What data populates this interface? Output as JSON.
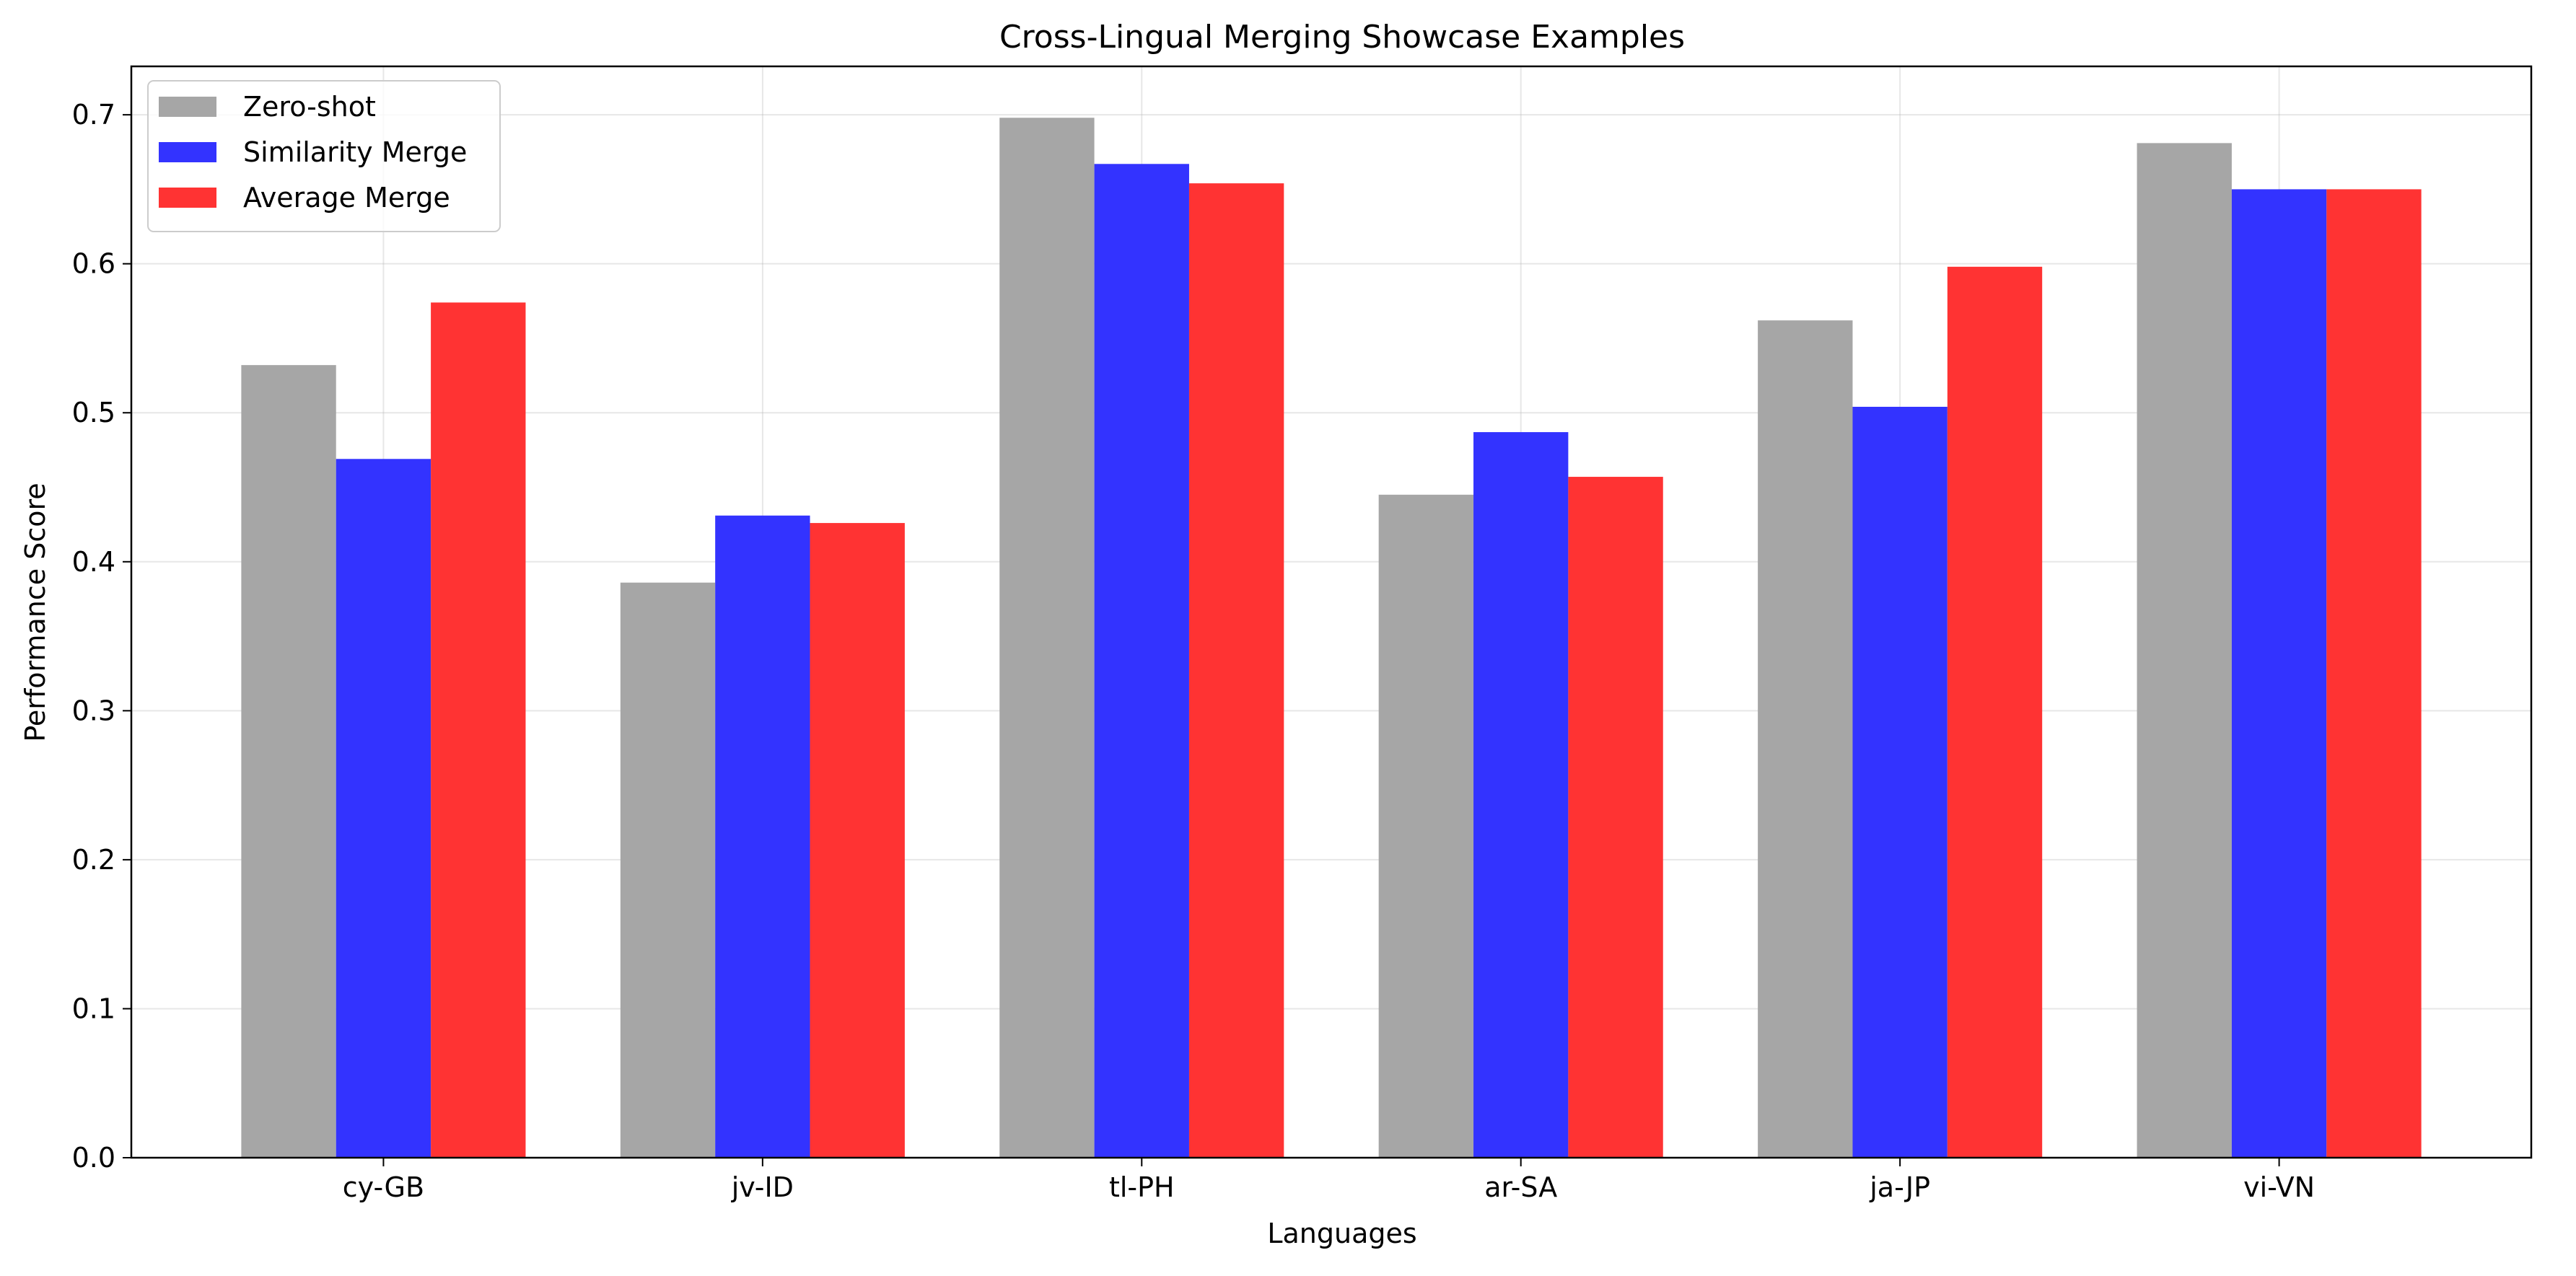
{
  "chart_data": {
    "type": "bar",
    "title": "Cross-Lingual Merging Showcase Examples",
    "xlabel": "Languages",
    "ylabel": "Performance Score",
    "categories": [
      "cy-GB",
      "jv-ID",
      "tl-PH",
      "ar-SA",
      "ja-JP",
      "vi-VN"
    ],
    "series": [
      {
        "name": "Zero-shot",
        "color": "#a6a6a6",
        "values": [
          0.532,
          0.386,
          0.698,
          0.445,
          0.562,
          0.681
        ]
      },
      {
        "name": "Similarity Merge",
        "color": "#3333ff",
        "values": [
          0.469,
          0.431,
          0.667,
          0.487,
          0.504,
          0.65
        ]
      },
      {
        "name": "Average Merge",
        "color": "#ff3333",
        "values": [
          0.574,
          0.426,
          0.654,
          0.457,
          0.598,
          0.65
        ]
      }
    ],
    "ylim": [
      0,
      0.7325
    ],
    "yticks": [
      "0.0",
      "0.1",
      "0.2",
      "0.3",
      "0.4",
      "0.5",
      "0.6",
      "0.7"
    ],
    "grid": true,
    "legend_position": "top-left"
  }
}
